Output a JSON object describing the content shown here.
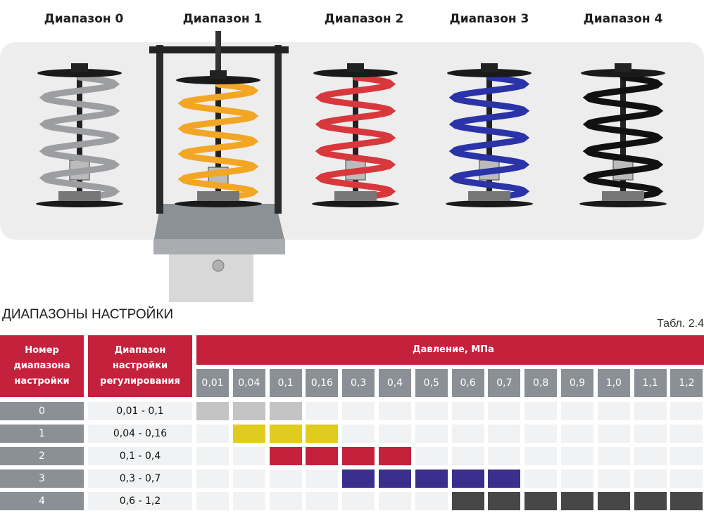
{
  "spring_labels": [
    "Диапазон 0",
    "Диапазон 1",
    "Диапазон 2",
    "Диапазон 3",
    "Диапазон 4"
  ],
  "spring_colors": [
    "#9c9ea1",
    "#f2a623",
    "#d8383c",
    "#2b33a8",
    "#111111"
  ],
  "table_title": "ДИАПАЗОНЫ НАСТРОЙКИ",
  "table_ref": "Табл. 2.4",
  "headers": {
    "number": "Номер диапазона настройки",
    "range": "Диапазон настройки регулирования",
    "pressure": "Давление, МПа"
  },
  "pressures": [
    "0,01",
    "0,04",
    "0,1",
    "0,16",
    "0,3",
    "0,4",
    "0,5",
    "0,6",
    "0,7",
    "0,8",
    "0,9",
    "1,0",
    "1,1",
    "1,2"
  ],
  "rows": [
    {
      "number": "0",
      "range": "0,01 - 0,1",
      "from": 0,
      "to": 2,
      "color": "#c4c4c4"
    },
    {
      "number": "1",
      "range": "0,04 - 0,16",
      "from": 1,
      "to": 3,
      "color": "#e0cc1f"
    },
    {
      "number": "2",
      "range": "0,1 - 0,4",
      "from": 2,
      "to": 5,
      "color": "#c4213d"
    },
    {
      "number": "3",
      "range": "0,3 - 0,7",
      "from": 4,
      "to": 8,
      "color": "#3a2f8c"
    },
    {
      "number": "4",
      "range": "0,6 - 1,2",
      "from": 7,
      "to": 13,
      "color": "#474747"
    }
  ]
}
